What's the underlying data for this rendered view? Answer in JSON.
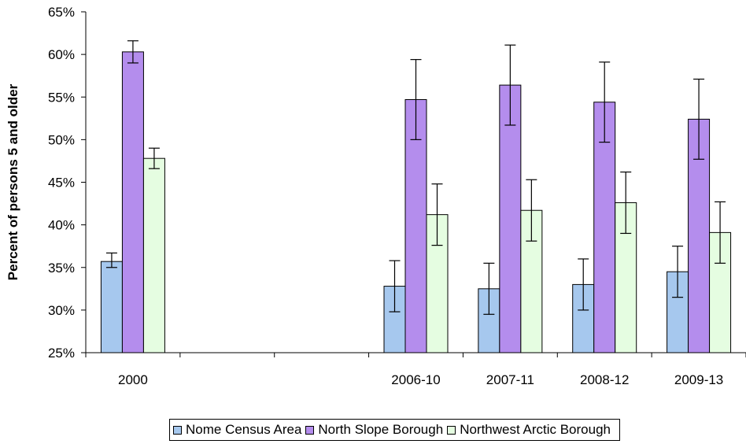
{
  "chart_data": {
    "type": "bar",
    "categories": [
      "2000",
      "",
      "",
      "2006-10",
      "2007-11",
      "2008-12",
      "2009-13"
    ],
    "ylabel": "Percent of persons 5 and older",
    "xlabel": "",
    "ylim": [
      25,
      65
    ],
    "yticks": [
      "25%",
      "30%",
      "35%",
      "40%",
      "45%",
      "50%",
      "55%",
      "60%",
      "65%"
    ],
    "grid": false,
    "legend_position": "bottom",
    "series": [
      {
        "name": "Nome Census Area",
        "color": "#a6c8ee",
        "values": [
          35.7,
          null,
          null,
          32.8,
          32.5,
          33.0,
          34.5
        ],
        "error_low": [
          35.0,
          null,
          null,
          29.8,
          29.5,
          30.0,
          31.5
        ],
        "error_high": [
          36.7,
          null,
          null,
          35.8,
          35.5,
          36.0,
          37.5
        ]
      },
      {
        "name": "North Slope Borough",
        "color": "#b48ded",
        "values": [
          60.3,
          null,
          null,
          54.7,
          56.4,
          54.4,
          52.4
        ],
        "error_low": [
          59.0,
          null,
          null,
          50.0,
          51.7,
          49.7,
          47.7
        ],
        "error_high": [
          61.6,
          null,
          null,
          59.4,
          61.1,
          59.1,
          57.1
        ]
      },
      {
        "name": "Northwest Arctic Borough",
        "color": "#e5fde1",
        "values": [
          47.8,
          null,
          null,
          41.2,
          41.7,
          42.6,
          39.1
        ],
        "error_low": [
          46.6,
          null,
          null,
          37.6,
          38.1,
          39.0,
          35.5
        ],
        "error_high": [
          49.0,
          null,
          null,
          44.8,
          45.3,
          46.2,
          42.7
        ]
      }
    ]
  }
}
